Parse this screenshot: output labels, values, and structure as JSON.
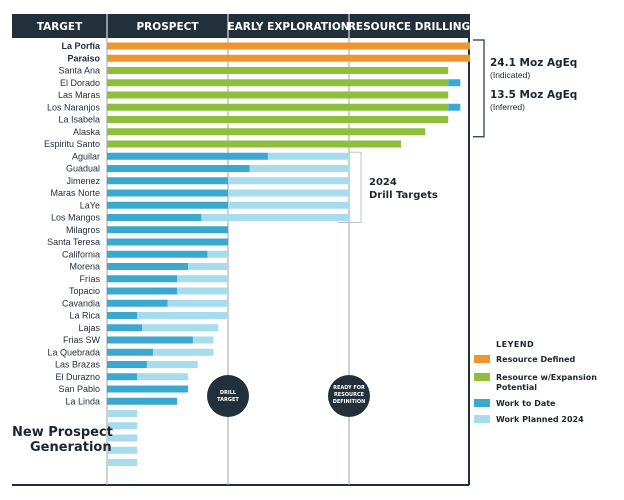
{
  "header": {
    "target": "TARGET",
    "prospect": "PROSPECT",
    "early_exploration": "EARLY EXPLORATION",
    "resource_drilling": "RESOURCE DRILLING"
  },
  "colors": {
    "header_bg": "#22303c",
    "resource_defined": "#f0952d",
    "resource_expansion": "#8dbf3a",
    "work_to_date": "#3ba9cf",
    "work_planned": "#a6dcec",
    "circle": "#22303c",
    "divider": "#9aa3aa"
  },
  "chart_data": {
    "type": "bar",
    "orientation": "horizontal",
    "stages": [
      "PROSPECT",
      "EARLY EXPLORATION",
      "RESOURCE DRILLING"
    ],
    "xlim": [
      0,
      3
    ],
    "rows": [
      {
        "name": "La Porfía",
        "bold": true,
        "segments": [
          {
            "status": "resource_defined",
            "from": 0,
            "to": 3.0
          }
        ]
      },
      {
        "name": "Paraiso",
        "bold": true,
        "segments": [
          {
            "status": "resource_defined",
            "from": 0,
            "to": 3.0
          }
        ]
      },
      {
        "name": "Santa Ana",
        "segments": [
          {
            "status": "resource_expansion",
            "from": 0,
            "to": 2.82
          }
        ]
      },
      {
        "name": "El Dorado",
        "segments": [
          {
            "status": "resource_expansion",
            "from": 0,
            "to": 2.82
          },
          {
            "status": "work_to_date",
            "from": 2.82,
            "to": 2.92
          }
        ]
      },
      {
        "name": "Las Maras",
        "segments": [
          {
            "status": "resource_expansion",
            "from": 0,
            "to": 2.82
          }
        ]
      },
      {
        "name": "Los Naranjos",
        "segments": [
          {
            "status": "resource_expansion",
            "from": 0,
            "to": 2.82
          },
          {
            "status": "work_to_date",
            "from": 2.82,
            "to": 2.92
          }
        ]
      },
      {
        "name": "La Isabela",
        "segments": [
          {
            "status": "resource_expansion",
            "from": 0,
            "to": 2.82
          }
        ]
      },
      {
        "name": "Alaska",
        "segments": [
          {
            "status": "resource_expansion",
            "from": 0,
            "to": 2.63
          }
        ]
      },
      {
        "name": "Espiritu Santo",
        "segments": [
          {
            "status": "resource_expansion",
            "from": 0,
            "to": 2.43
          }
        ]
      },
      {
        "name": "Aguilar",
        "segments": [
          {
            "status": "work_to_date",
            "from": 0,
            "to": 1.33
          },
          {
            "status": "work_planned",
            "from": 1.33,
            "to": 2.0
          }
        ]
      },
      {
        "name": "Guadual",
        "segments": [
          {
            "status": "work_to_date",
            "from": 0,
            "to": 1.18
          },
          {
            "status": "work_planned",
            "from": 1.18,
            "to": 2.0
          }
        ]
      },
      {
        "name": "Jimenez",
        "segments": [
          {
            "status": "work_to_date",
            "from": 0,
            "to": 1.0
          },
          {
            "status": "work_planned",
            "from": 1.0,
            "to": 2.0
          }
        ]
      },
      {
        "name": "Maras Norte",
        "segments": [
          {
            "status": "work_to_date",
            "from": 0,
            "to": 1.0
          },
          {
            "status": "work_planned",
            "from": 1.0,
            "to": 2.0
          }
        ]
      },
      {
        "name": "LaYe",
        "segments": [
          {
            "status": "work_to_date",
            "from": 0,
            "to": 1.0
          },
          {
            "status": "work_planned",
            "from": 1.0,
            "to": 2.0
          }
        ]
      },
      {
        "name": "Los Mangos",
        "segments": [
          {
            "status": "work_to_date",
            "from": 0,
            "to": 0.78
          },
          {
            "status": "work_planned",
            "from": 0.78,
            "to": 2.0
          }
        ]
      },
      {
        "name": "Milagros",
        "segments": [
          {
            "status": "work_to_date",
            "from": 0,
            "to": 1.0
          }
        ]
      },
      {
        "name": "Santa Teresa",
        "segments": [
          {
            "status": "work_to_date",
            "from": 0,
            "to": 1.0
          }
        ]
      },
      {
        "name": "California",
        "segments": [
          {
            "status": "work_to_date",
            "from": 0,
            "to": 0.83
          },
          {
            "status": "work_planned",
            "from": 0.83,
            "to": 1.0
          }
        ]
      },
      {
        "name": "Morena",
        "segments": [
          {
            "status": "work_to_date",
            "from": 0,
            "to": 0.67
          },
          {
            "status": "work_planned",
            "from": 0.67,
            "to": 1.0
          }
        ]
      },
      {
        "name": "Frías",
        "segments": [
          {
            "status": "work_to_date",
            "from": 0,
            "to": 0.58
          },
          {
            "status": "work_planned",
            "from": 0.58,
            "to": 1.0
          }
        ]
      },
      {
        "name": "Topacio",
        "segments": [
          {
            "status": "work_to_date",
            "from": 0,
            "to": 0.58
          },
          {
            "status": "work_planned",
            "from": 0.58,
            "to": 1.0
          }
        ]
      },
      {
        "name": "Cavandia",
        "segments": [
          {
            "status": "work_to_date",
            "from": 0,
            "to": 0.5
          },
          {
            "status": "work_planned",
            "from": 0.5,
            "to": 1.0
          }
        ]
      },
      {
        "name": "La Rica",
        "segments": [
          {
            "status": "work_to_date",
            "from": 0,
            "to": 0.25
          },
          {
            "status": "work_planned",
            "from": 0.25,
            "to": 1.0
          }
        ]
      },
      {
        "name": "Lajas",
        "segments": [
          {
            "status": "work_to_date",
            "from": 0,
            "to": 0.29
          },
          {
            "status": "work_planned",
            "from": 0.29,
            "to": 0.92
          }
        ]
      },
      {
        "name": "Frias SW",
        "segments": [
          {
            "status": "work_to_date",
            "from": 0,
            "to": 0.71
          },
          {
            "status": "work_planned",
            "from": 0.71,
            "to": 0.88
          }
        ]
      },
      {
        "name": "La Quebrada",
        "segments": [
          {
            "status": "work_to_date",
            "from": 0,
            "to": 0.38
          },
          {
            "status": "work_planned",
            "from": 0.38,
            "to": 0.88
          }
        ]
      },
      {
        "name": "Las Brazas",
        "segments": [
          {
            "status": "work_to_date",
            "from": 0,
            "to": 0.33
          },
          {
            "status": "work_planned",
            "from": 0.33,
            "to": 0.75
          }
        ]
      },
      {
        "name": "El Durazno",
        "segments": [
          {
            "status": "work_to_date",
            "from": 0,
            "to": 0.25
          },
          {
            "status": "work_planned",
            "from": 0.25,
            "to": 0.67
          }
        ]
      },
      {
        "name": "San Pablo",
        "segments": [
          {
            "status": "work_to_date",
            "from": 0,
            "to": 0.67
          }
        ]
      },
      {
        "name": "La Linda",
        "segments": [
          {
            "status": "work_to_date",
            "from": 0,
            "to": 0.58
          }
        ]
      },
      {
        "name": "",
        "segments": [
          {
            "status": "work_planned",
            "from": 0,
            "to": 0.25
          }
        ]
      },
      {
        "name": "",
        "segments": [
          {
            "status": "work_planned",
            "from": 0,
            "to": 0.25
          }
        ]
      },
      {
        "name": "",
        "segments": [
          {
            "status": "work_planned",
            "from": 0,
            "to": 0.25
          }
        ]
      },
      {
        "name": "",
        "segments": [
          {
            "status": "work_planned",
            "from": 0,
            "to": 0.25
          }
        ]
      },
      {
        "name": "",
        "segments": [
          {
            "status": "work_planned",
            "from": 0,
            "to": 0.25
          }
        ]
      }
    ],
    "annotations": {
      "resource_total": "24.1 Moz AgEq",
      "resource_total_sub": "(Indicated)",
      "inferred_total": "13.5 Moz AgEq",
      "inferred_total_sub": "(Inferred)",
      "drill_targets_year": "2024",
      "drill_targets_label": "Drill Targets",
      "new_prospect_line1": "New Prospect",
      "new_prospect_line2": "Generation",
      "drill_target_circle_line1": "DRILL",
      "drill_target_circle_line2": "TARGET",
      "ready_circle_line1": "READY FOR",
      "ready_circle_line2": "RESOURCE",
      "ready_circle_line3": "DEFINITION"
    },
    "legend": {
      "title": "LEYEND",
      "items": [
        {
          "key": "resource_defined",
          "label": "Resource Defined"
        },
        {
          "key": "resource_expansion",
          "label": "Resource w/Expansion",
          "label2": "Potential"
        },
        {
          "key": "work_to_date",
          "label": "Work to Date"
        },
        {
          "key": "work_planned",
          "label": "Work Planned 2024"
        }
      ]
    }
  }
}
